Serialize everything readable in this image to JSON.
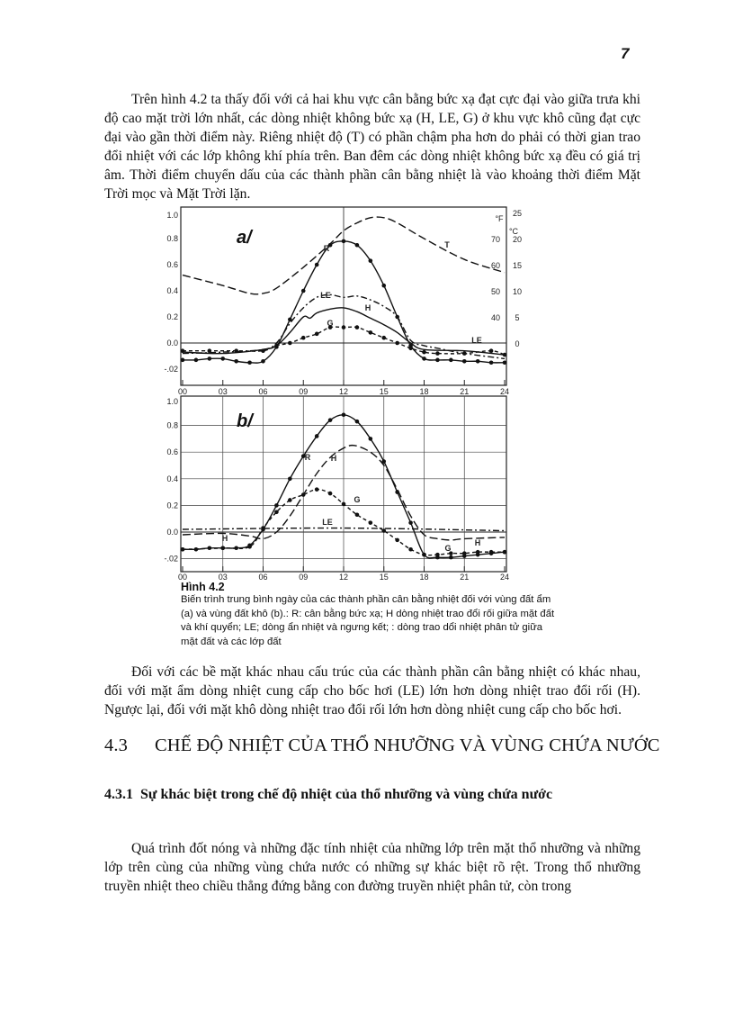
{
  "page_number": "7",
  "paragraphs": {
    "p1": "Trên hình 4.2 ta thấy đối với cả hai khu vực cân bằng bức xạ đạt cực đại vào giữa trưa khi độ cao mặt trời lớn nhất, các dòng nhiệt không bức xạ (H, LE, G) ở khu vực khô cũng đạt cực đại vào gần thời điểm này. Riêng nhiệt độ (T) có phần chậm pha hơn do phải có thời gian trao đổi nhiệt với các lớp không khí phía trên. Ban đêm các dòng nhiệt không bức xạ đều có giá trị âm. Thời điểm chuyển dấu của các thành phần cân bằng nhiệt là vào khoảng thời điểm Mặt Trời mọc và Mặt Trời lặn.",
    "p2": "Đối với các bề mặt khác nhau cấu trúc của các thành phần cân bằng nhiệt có khác nhau, đối với mặt ẩm dòng nhiệt cung cấp cho bốc hơi (LE) lớn hơn dòng nhiệt trao đổi rối (H). Ngược lại, đối với mặt khô dòng nhiệt trao đổi rối lớn hơn dòng nhiệt cung cấp cho bốc hơi.",
    "p3": "Quá trình đốt nóng và những đặc tính nhiệt của những lớp trên mặt thổ nhưỡng và những lớp trên cùng của những vùng chứa nước có những sự khác biệt rõ rệt. Trong thổ nhưỡng truyền nhiệt theo chiều thẳng đứng bằng con đường truyền nhiệt phân tử, còn trong"
  },
  "section": {
    "number": "4.3",
    "title": "CHẾ ĐỘ NHIỆT CỦA THỔ NHƯỠNG VÀ VÙNG CHỨA NƯỚC"
  },
  "subsection": {
    "number": "4.3.1",
    "title": "Sự khác biệt trong chế độ nhiệt của thổ nhưỡng và vùng chứa nước"
  },
  "figure": {
    "caption_title": "Hình 4.2",
    "caption_text": "Biến trình trung bình ngày của các thành phần cân bằng nhiệt đối với vùng đất ẩm (a) và vùng đất khô (b).: R: cân bằng bức xạ; H dòng nhiệt trao đổi rối giữa mặt đất và khí quyển; LE; dòng ẩn nhiệt và ngưng kết; : dòng trao dổi nhiệt phân tử giữa mặt đất và các lớp đất"
  },
  "chart_data": [
    {
      "type": "line",
      "panel_label": "a/",
      "x_ticks": [
        "00",
        "03",
        "06",
        "09",
        "12",
        "15",
        "18",
        "21",
        "24"
      ],
      "y_ticks": [
        "1.0",
        "0.8",
        "0.6",
        "0.4",
        "0.2",
        "0.0",
        "-.02"
      ],
      "xlim": [
        0,
        24
      ],
      "ylim": [
        -0.25,
        1.0
      ],
      "right_axis": {
        "unit_f": "°F",
        "unit_c": "°C",
        "f_ticks": [
          "70",
          "60",
          "50",
          "40"
        ],
        "c_ticks": [
          "25",
          "20",
          "15",
          "10",
          "5",
          "0"
        ],
        "c_range": [
          0,
          25
        ]
      },
      "series": [
        {
          "name": "R",
          "style": "solid-dots",
          "x": [
            0,
            1,
            2,
            3,
            4,
            5,
            6,
            7,
            8,
            9,
            10,
            11,
            12,
            13,
            14,
            15,
            16,
            17,
            18,
            19,
            20,
            21,
            22,
            23,
            24
          ],
          "y": [
            -0.13,
            -0.13,
            -0.12,
            -0.12,
            -0.14,
            -0.15,
            -0.14,
            -0.03,
            0.18,
            0.4,
            0.6,
            0.75,
            0.78,
            0.75,
            0.63,
            0.44,
            0.2,
            -0.02,
            -0.12,
            -0.13,
            -0.13,
            -0.14,
            -0.14,
            -0.15,
            -0.15
          ]
        },
        {
          "name": "T",
          "style": "long-dash",
          "axis": "right",
          "x": [
            0,
            3,
            5,
            6,
            7,
            9,
            11,
            12,
            13,
            14,
            15,
            16,
            18,
            21,
            24
          ],
          "y": [
            13,
            11,
            9.5,
            9.5,
            10.5,
            14.5,
            19,
            21.5,
            23,
            24,
            24,
            23,
            20,
            16,
            13.5
          ]
        },
        {
          "name": "LE",
          "style": "dash-dot",
          "x": [
            0,
            3,
            6,
            7,
            8,
            9,
            10,
            11,
            12,
            13,
            14,
            15,
            16,
            17,
            18,
            19,
            21,
            24
          ],
          "y": [
            -0.08,
            -0.07,
            -0.05,
            0.0,
            0.15,
            0.27,
            0.35,
            0.37,
            0.35,
            0.36,
            0.33,
            0.28,
            0.2,
            0.02,
            -0.02,
            -0.04,
            -0.08,
            -0.12
          ]
        },
        {
          "name": "H",
          "style": "solid",
          "x": [
            0,
            3,
            6,
            7,
            8,
            9,
            9.5,
            10,
            11,
            12,
            13,
            14,
            15,
            16,
            17,
            18,
            21,
            24
          ],
          "y": [
            -0.07,
            -0.08,
            -0.05,
            -0.02,
            0.08,
            0.2,
            0.19,
            0.23,
            0.26,
            0.27,
            0.24,
            0.19,
            0.14,
            0.08,
            0.0,
            -0.05,
            -0.06,
            -0.09
          ]
        },
        {
          "name": "G",
          "style": "dash-dots",
          "x": [
            0,
            2,
            4,
            6,
            7,
            8,
            9,
            10,
            11,
            12,
            13,
            14,
            15,
            16,
            17,
            18,
            19,
            21,
            23,
            24
          ],
          "y": [
            -0.06,
            -0.06,
            -0.06,
            -0.06,
            -0.02,
            0.0,
            0.04,
            0.07,
            0.12,
            0.12,
            0.12,
            0.08,
            0.04,
            0.0,
            -0.04,
            -0.07,
            -0.08,
            -0.08,
            -0.06,
            -0.09
          ]
        }
      ],
      "extra_labels": [
        "LE"
      ]
    },
    {
      "type": "line",
      "panel_label": "b/",
      "x_ticks": [
        "00",
        "03",
        "06",
        "09",
        "12",
        "15",
        "18",
        "21",
        "24"
      ],
      "y_ticks": [
        "1.0",
        "0.8",
        "0.6",
        "0.4",
        "0.2",
        "0.0",
        "-.02"
      ],
      "xlim": [
        0,
        24
      ],
      "ylim": [
        -0.25,
        1.0
      ],
      "grid": true,
      "series": [
        {
          "name": "R",
          "style": "solid-dots",
          "x": [
            0,
            1,
            2,
            3,
            4,
            5,
            6,
            7,
            8,
            9,
            10,
            11,
            12,
            13,
            14,
            15,
            16,
            17,
            18,
            19,
            20,
            21,
            22,
            23,
            24
          ],
          "y": [
            -0.13,
            -0.13,
            -0.12,
            -0.12,
            -0.12,
            -0.1,
            0.02,
            0.2,
            0.4,
            0.57,
            0.72,
            0.84,
            0.88,
            0.83,
            0.7,
            0.53,
            0.3,
            0.07,
            -0.17,
            -0.19,
            -0.19,
            -0.18,
            -0.17,
            -0.16,
            -0.15
          ]
        },
        {
          "name": "H",
          "style": "long-dash",
          "x": [
            0,
            3,
            5,
            6,
            7,
            8,
            9,
            10,
            11,
            12,
            12.8,
            14,
            15,
            16,
            17,
            18,
            19,
            20,
            21,
            24
          ],
          "y": [
            -0.02,
            -0.01,
            -0.03,
            -0.05,
            0.0,
            0.12,
            0.28,
            0.44,
            0.56,
            0.63,
            0.65,
            0.6,
            0.5,
            0.32,
            0.12,
            -0.02,
            -0.05,
            -0.06,
            -0.05,
            -0.04
          ]
        },
        {
          "name": "G",
          "style": "dash-dots",
          "x": [
            0,
            3,
            5,
            6,
            7,
            8,
            9,
            10,
            11,
            12,
            13,
            14,
            15,
            16,
            17,
            18,
            19,
            20,
            21,
            22,
            23,
            24
          ],
          "y": [
            -0.13,
            -0.12,
            -0.11,
            0.03,
            0.15,
            0.24,
            0.28,
            0.32,
            0.29,
            0.21,
            0.13,
            0.07,
            0.01,
            -0.06,
            -0.13,
            -0.17,
            -0.17,
            -0.16,
            -0.16,
            -0.15,
            -0.15,
            -0.15
          ]
        },
        {
          "name": "LE",
          "style": "dash-dot",
          "x": [
            0,
            12,
            24
          ],
          "y": [
            0.02,
            0.03,
            0.01
          ]
        }
      ],
      "extra_labels": [
        "H",
        "G"
      ]
    }
  ]
}
